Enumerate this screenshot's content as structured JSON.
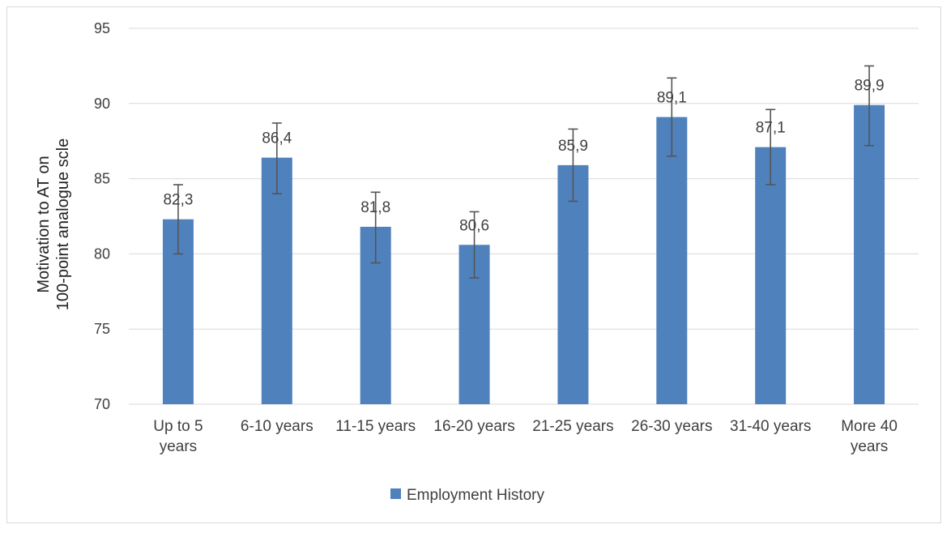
{
  "chart_data": {
    "type": "bar",
    "categories": [
      [
        "Up to 5",
        "years"
      ],
      [
        "6-10 years"
      ],
      [
        "11-15 years"
      ],
      [
        "16-20 years"
      ],
      [
        "21-25 years"
      ],
      [
        "26-30 years"
      ],
      [
        "31-40 years"
      ],
      [
        "More 40",
        "years"
      ]
    ],
    "series": [
      {
        "name": "Employment History",
        "values": [
          82.3,
          86.4,
          81.8,
          80.6,
          85.9,
          89.1,
          87.1,
          89.9
        ],
        "labels": [
          "82,3",
          "86,4",
          "81,8",
          "80,6",
          "85,9",
          "89,1",
          "87,1",
          "89,9"
        ],
        "error_low": [
          80.0,
          84.0,
          79.4,
          78.4,
          83.5,
          86.5,
          84.6,
          87.2
        ],
        "error_high": [
          84.6,
          88.7,
          84.1,
          82.8,
          88.3,
          91.7,
          89.6,
          92.5
        ],
        "color": "#4f81bd"
      }
    ],
    "ylabel_lines": [
      "Motivation to AT on",
      "100-point analogue scle"
    ],
    "ylim": [
      70,
      95
    ],
    "yticks": [
      70,
      75,
      80,
      85,
      90,
      95
    ],
    "grid": true,
    "legend": "bottom"
  }
}
